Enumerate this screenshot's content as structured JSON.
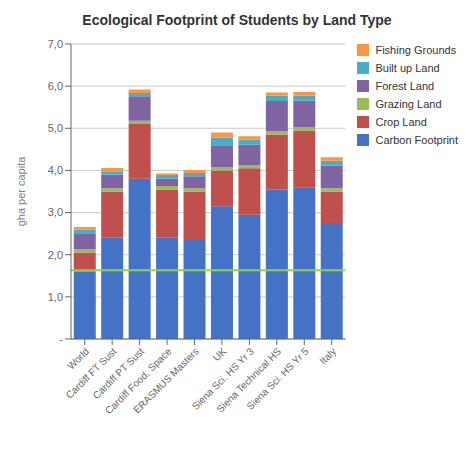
{
  "chart_data": {
    "type": "bar",
    "stacked": true,
    "title": "Ecological Footprint of Students by Land Type",
    "ylabel": "gha per capita",
    "categories": [
      "World",
      "Cardiff FT Sust",
      "Cardiff PT Sust",
      "Cardiff Food, Space",
      "ERASMUS Masters",
      "UK",
      "Siena Sci. HS Yr 3",
      "Siena Technical HS",
      "Siena Sci. HS Yr 5",
      "Italy"
    ],
    "series": [
      {
        "name": "Carbon Footprint",
        "color": "#4472C4",
        "values": [
          1.6,
          2.4,
          3.8,
          2.4,
          2.35,
          3.15,
          2.95,
          3.55,
          3.6,
          2.75
        ]
      },
      {
        "name": "Crop Land",
        "color": "#C0504D",
        "values": [
          0.45,
          1.1,
          1.3,
          1.15,
          1.15,
          0.85,
          1.1,
          1.3,
          1.35,
          0.75
        ]
      },
      {
        "name": "Grazing Land",
        "color": "#9BBB59",
        "values": [
          0.08,
          0.08,
          0.08,
          0.08,
          0.08,
          0.08,
          0.08,
          0.08,
          0.08,
          0.08
        ]
      },
      {
        "name": "Forest Land",
        "color": "#8064A2",
        "values": [
          0.38,
          0.32,
          0.58,
          0.18,
          0.28,
          0.52,
          0.48,
          0.72,
          0.63,
          0.53
        ]
      },
      {
        "name": "Built up Land",
        "color": "#4BACC6",
        "values": [
          0.08,
          0.08,
          0.08,
          0.08,
          0.08,
          0.18,
          0.12,
          0.12,
          0.12,
          0.12
        ]
      },
      {
        "name": "Fishing Grounds",
        "color": "#F79646",
        "values": [
          0.07,
          0.08,
          0.08,
          0.04,
          0.07,
          0.12,
          0.08,
          0.08,
          0.08,
          0.08
        ]
      }
    ],
    "hline": {
      "y": 1.63,
      "color": "#92D050"
    },
    "ylim": [
      0,
      7.0
    ],
    "yticks": [
      {
        "value": 0,
        "label": "-"
      },
      {
        "value": 1.0,
        "label": "1,0"
      },
      {
        "value": 2.0,
        "label": "2,0"
      },
      {
        "value": 3.0,
        "label": "3,0"
      },
      {
        "value": 4.0,
        "label": "4,0"
      },
      {
        "value": 5.0,
        "label": "5,0"
      },
      {
        "value": 6.0,
        "label": "6,0"
      },
      {
        "value": 7.0,
        "label": "7,0"
      }
    ],
    "grid": true,
    "legend": "right"
  }
}
